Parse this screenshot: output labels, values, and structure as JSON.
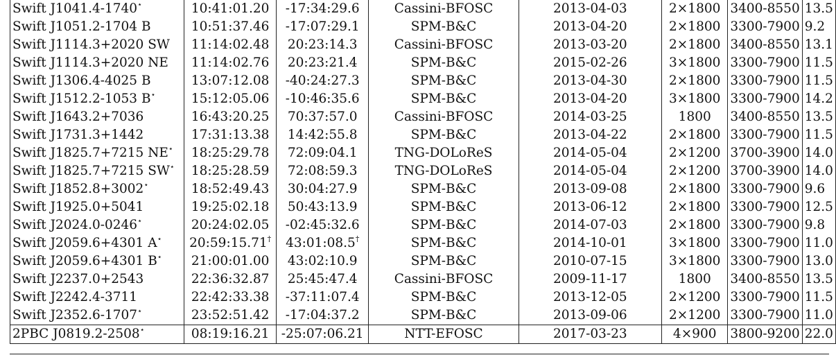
{
  "table": {
    "rows": [
      {
        "source": "Swift J1041.4-1740",
        "mark": "⋆",
        "ra": "10:41:01.20",
        "ra_mark": "",
        "dec": "-17:34:29.6",
        "dec_mark": "",
        "telescope": "Cassini-BFOSC",
        "date": "2013-04-03",
        "exposure": "2×1800",
        "range": "3400-8550",
        "value": "13.5"
      },
      {
        "source": "Swift J1051.2-1704 B",
        "mark": "",
        "ra": "10:51:37.46",
        "ra_mark": "",
        "dec": "-17:07:29.1",
        "dec_mark": "",
        "telescope": "SPM-B&C",
        "date": "2013-04-20",
        "exposure": "2×1800",
        "range": "3300-7900",
        "value": "9.2"
      },
      {
        "source": "Swift J1114.3+2020 SW",
        "mark": "",
        "ra": "11:14:02.48",
        "ra_mark": "",
        "dec": "20:23:14.3",
        "dec_mark": "",
        "telescope": "Cassini-BFOSC",
        "date": "2013-03-20",
        "exposure": "2×1800",
        "range": "3400-8550",
        "value": "13.1"
      },
      {
        "source": "Swift J1114.3+2020 NE",
        "mark": "",
        "ra": "11:14:02.76",
        "ra_mark": "",
        "dec": "20:23:21.4",
        "dec_mark": "",
        "telescope": "SPM-B&C",
        "date": "2015-02-26",
        "exposure": "3×1800",
        "range": "3300-7900",
        "value": "11.5"
      },
      {
        "source": "Swift J1306.4-4025 B",
        "mark": "",
        "ra": "13:07:12.08",
        "ra_mark": "",
        "dec": "-40:24:27.3",
        "dec_mark": "",
        "telescope": "SPM-B&C",
        "date": "2013-04-30",
        "exposure": "2×1800",
        "range": "3300-7900",
        "value": "11.5"
      },
      {
        "source": "Swift J1512.2-1053 B",
        "mark": "⋆",
        "ra": "15:12:05.06",
        "ra_mark": "",
        "dec": "-10:46:35.6",
        "dec_mark": "",
        "telescope": "SPM-B&C",
        "date": "2013-04-20",
        "exposure": "3×1800",
        "range": "3300-7900",
        "value": "14.2"
      },
      {
        "source": "Swift J1643.2+7036",
        "mark": "",
        "ra": "16:43:20.25",
        "ra_mark": "",
        "dec": "70:37:57.0",
        "dec_mark": "",
        "telescope": "Cassini-BFOSC",
        "date": "2014-03-25",
        "exposure": "1800",
        "range": "3400-8550",
        "value": "13.5"
      },
      {
        "source": "Swift J1731.3+1442",
        "mark": "",
        "ra": "17:31:13.38",
        "ra_mark": "",
        "dec": "14:42:55.8",
        "dec_mark": "",
        "telescope": "SPM-B&C",
        "date": "2013-04-22",
        "exposure": "2×1800",
        "range": "3300-7900",
        "value": "11.5"
      },
      {
        "source": "Swift J1825.7+7215 NE",
        "mark": "⋆",
        "ra": "18:25:29.78",
        "ra_mark": "",
        "dec": "72:09:04.1",
        "dec_mark": "",
        "telescope": "TNG-DOLoReS",
        "date": "2014-05-04",
        "exposure": "2×1200",
        "range": "3700-3900",
        "value": "14.0"
      },
      {
        "source": "Swift J1825.7+7215 SW",
        "mark": "⋆",
        "ra": "18:25:28.59",
        "ra_mark": "",
        "dec": "72:08:59.3",
        "dec_mark": "",
        "telescope": "TNG-DOLoReS",
        "date": "2014-05-04",
        "exposure": "2×1200",
        "range": "3700-3900",
        "value": "14.0"
      },
      {
        "source": "Swift J1852.8+3002",
        "mark": "⋆",
        "ra": "18:52:49.43",
        "ra_mark": "",
        "dec": "30:04:27.9",
        "dec_mark": "",
        "telescope": "SPM-B&C",
        "date": "2013-09-08",
        "exposure": "2×1800",
        "range": "3300-7900",
        "value": "9.6"
      },
      {
        "source": "Swift J1925.0+5041",
        "mark": "",
        "ra": "19:25:02.18",
        "ra_mark": "",
        "dec": "50:43:13.9",
        "dec_mark": "",
        "telescope": "SPM-B&C",
        "date": "2013-06-12",
        "exposure": "2×1800",
        "range": "3300-7900",
        "value": "12.5"
      },
      {
        "source": "Swift J2024.0-0246",
        "mark": "⋆",
        "ra": "20:24:02.05",
        "ra_mark": "",
        "dec": "-02:45:32.6",
        "dec_mark": "",
        "telescope": "SPM-B&C",
        "date": "2014-07-03",
        "exposure": "2×1800",
        "range": "3300-7900",
        "value": "9.8"
      },
      {
        "source": "Swift J2059.6+4301 A",
        "mark": "⋆",
        "ra": "20:59:15.71",
        "ra_mark": "†",
        "dec": "43:01:08.5",
        "dec_mark": "†",
        "telescope": "SPM-B&C",
        "date": "2014-10-01",
        "exposure": "3×1800",
        "range": "3300-7900",
        "value": "11.0"
      },
      {
        "source": "Swift J2059.6+4301 B",
        "mark": "⋆",
        "ra": "21:00:01.00",
        "ra_mark": "",
        "dec": "43:02:10.9",
        "dec_mark": "",
        "telescope": "SPM-B&C",
        "date": "2010-07-15",
        "exposure": "3×1800",
        "range": "3300-7900",
        "value": "13.0"
      },
      {
        "source": "Swift J2237.0+2543",
        "mark": "",
        "ra": "22:36:32.87",
        "ra_mark": "",
        "dec": "25:45:47.4",
        "dec_mark": "",
        "telescope": "Cassini-BFOSC",
        "date": "2009-11-17",
        "exposure": "1800",
        "range": "3400-8550",
        "value": "13.5"
      },
      {
        "source": "Swift J2242.4-3711",
        "mark": "",
        "ra": "22:42:33.38",
        "ra_mark": "",
        "dec": "-37:11:07.4",
        "dec_mark": "",
        "telescope": "SPM-B&C",
        "date": "2013-12-05",
        "exposure": "2×1200",
        "range": "3300-7900",
        "value": "11.5"
      },
      {
        "source": "Swift J2352.6-1707",
        "mark": "⋆",
        "ra": "23:52:51.42",
        "ra_mark": "",
        "dec": "-17:04:37.2",
        "dec_mark": "",
        "telescope": "SPM-B&C",
        "date": "2013-09-06",
        "exposure": "2×1200",
        "range": "3300-7900",
        "value": "11.0"
      },
      {
        "source": "2PBC J0819.2-2508",
        "mark": "⋆",
        "ra": "08:19:16.21",
        "ra_mark": "",
        "dec": "-25:07:06.21",
        "dec_mark": "",
        "telescope": "NTT-EFOSC",
        "date": "2017-03-23",
        "exposure": "4×900",
        "range": "3800-9200",
        "value": "22.0"
      }
    ]
  }
}
